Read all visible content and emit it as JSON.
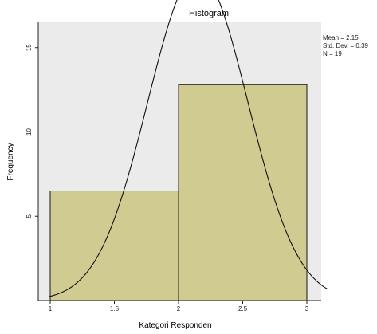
{
  "chart_data": {
    "type": "bar",
    "title": "Histogram",
    "xlabel": "Kategori Responden",
    "ylabel": "Frequency",
    "xlim": [
      1.0,
      3.0
    ],
    "ylim": [
      0,
      16.5
    ],
    "x_ticks": [
      "1",
      "1.5",
      "2",
      "2.5",
      "3"
    ],
    "y_ticks": [
      "5",
      "10",
      "15"
    ],
    "bins": [
      {
        "from": 1.0,
        "to": 2.0,
        "frequency": 6.5
      },
      {
        "from": 2.0,
        "to": 3.0,
        "frequency": 12.8
      }
    ],
    "normal_curve": {
      "mean": 2.15,
      "std_dev": 0.39,
      "n": 19
    },
    "legend": [
      "Mean",
      "Std. Dev.",
      "N"
    ],
    "colors": {
      "bar": "#cfcb91",
      "bar_border": "#1a1a1a",
      "plot_bg": "#ebebeb",
      "curve": "#111111"
    },
    "grid": false
  }
}
